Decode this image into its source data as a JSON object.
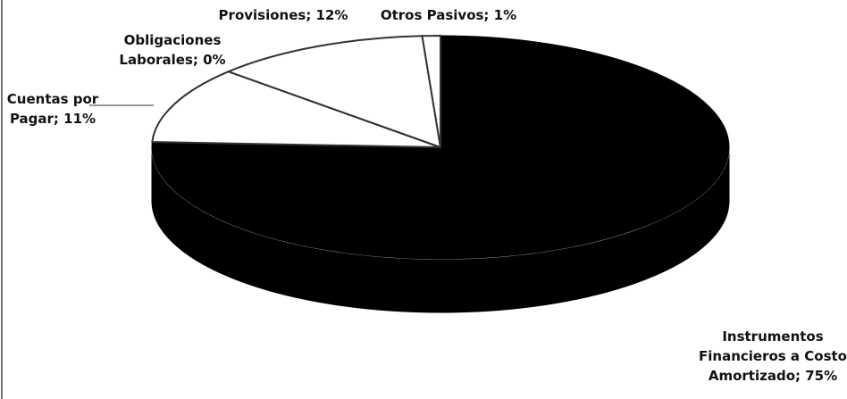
{
  "chart_data": {
    "type": "pie3d",
    "values": [
      75,
      11,
      0,
      12,
      1
    ],
    "value_labels": [
      "Instrumentos Financieros a Costo Amortizado; 75%",
      "Cuentas por Pagar; 11%",
      "Obligaciones Laborales; 0%",
      "Provisiones; 12%",
      "Otros Pasivos; 1%"
    ],
    "colors": [
      "#000000",
      "#ffffff",
      "#ffffff",
      "#ffffff",
      "#ffffff"
    ]
  }
}
